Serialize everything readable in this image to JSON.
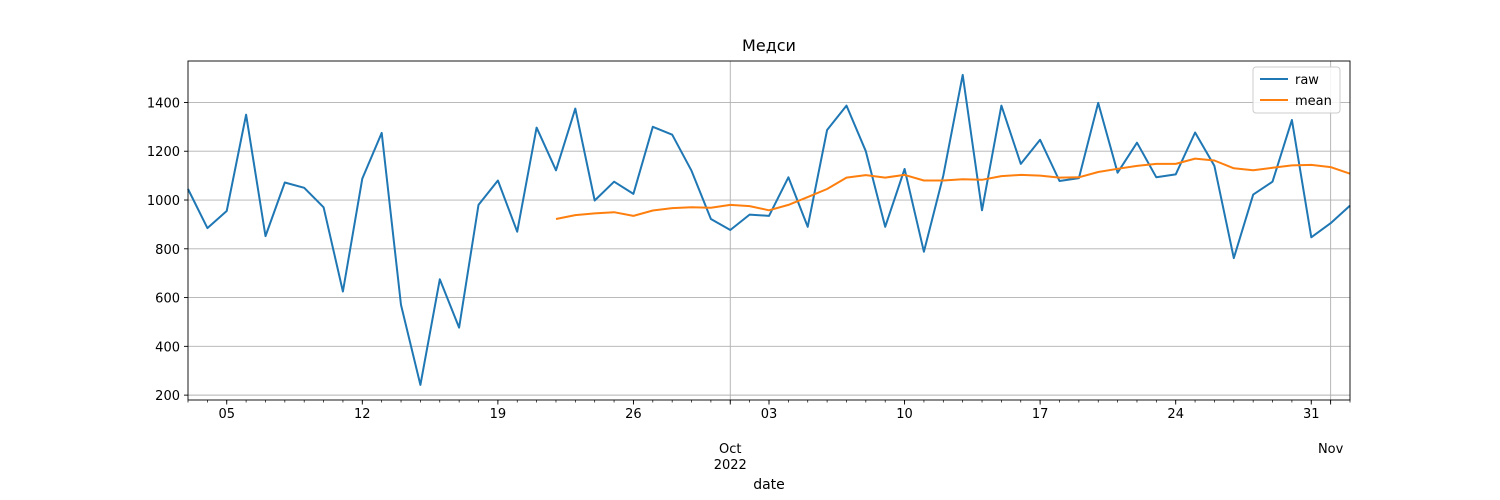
{
  "chart_data": {
    "type": "line",
    "title": "Медси",
    "xlabel": "date",
    "ylabel": "",
    "x_start": "2022-09-03",
    "xlim": [
      "2022-09-03",
      "2022-11-02"
    ],
    "ylim": [
      180,
      1570
    ],
    "yticks": [
      200,
      400,
      600,
      800,
      1000,
      1200,
      1400
    ],
    "xticks_major": [
      {
        "date": "2022-09-05",
        "label": "05"
      },
      {
        "date": "2022-09-12",
        "label": "12"
      },
      {
        "date": "2022-09-19",
        "label": "19"
      },
      {
        "date": "2022-09-26",
        "label": "26"
      },
      {
        "date": "2022-10-03",
        "label": "03"
      },
      {
        "date": "2022-10-10",
        "label": "10"
      },
      {
        "date": "2022-10-17",
        "label": "17"
      },
      {
        "date": "2022-10-24",
        "label": "24"
      },
      {
        "date": "2022-10-31",
        "label": "31"
      }
    ],
    "month_ticks": [
      {
        "date": "2022-10-01",
        "label": "Oct",
        "year": "2022"
      },
      {
        "date": "2022-11-01",
        "label": "Nov",
        "year": ""
      }
    ],
    "grid": true,
    "legend_position": "top-right",
    "series": [
      {
        "name": "raw",
        "color": "#1f77b4",
        "start": "2022-09-03",
        "values": [
          1045,
          885,
          955,
          1350,
          852,
          1072,
          1050,
          970,
          625,
          1088,
          1275,
          570,
          242,
          675,
          477,
          980,
          1080,
          870,
          1297,
          1122,
          1375,
          998,
          1075,
          1025,
          1300,
          1268,
          1120,
          922,
          877,
          940,
          935,
          1093,
          890,
          1287,
          1387,
          1200,
          890,
          1127,
          788,
          1100,
          1513,
          958,
          1387,
          1148,
          1247,
          1078,
          1090,
          1398,
          1112,
          1235,
          1093,
          1105,
          1277,
          1140,
          762,
          1022,
          1075,
          1328,
          847,
          905,
          977
        ]
      },
      {
        "name": "mean",
        "color": "#ff7f0e",
        "start": "2022-09-22",
        "values": [
          922,
          938,
          945,
          950,
          935,
          957,
          967,
          970,
          968,
          980,
          975,
          958,
          980,
          1012,
          1045,
          1092,
          1102,
          1092,
          1103,
          1080,
          1080,
          1085,
          1083,
          1098,
          1103,
          1100,
          1092,
          1093,
          1115,
          1128,
          1140,
          1148,
          1148,
          1170,
          1162,
          1130,
          1122,
          1132,
          1142,
          1144,
          1135,
          1108
        ]
      }
    ]
  }
}
